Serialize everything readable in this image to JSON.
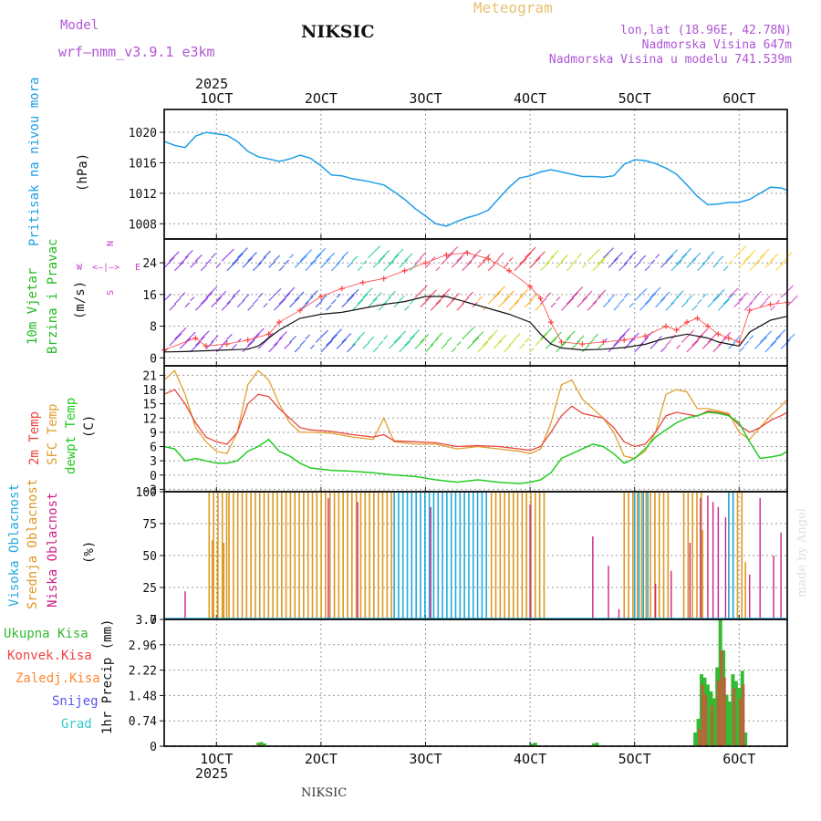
{
  "header": {
    "model_label": "Model",
    "model_name": "wrf—nmm_v3.9.1 e3km",
    "station": "NIKSIC",
    "product": "Meteogram",
    "coords": "lon,lat (18.96E, 42.78N)",
    "altitude": "Nadmorska Visina 647m",
    "model_altitude": "Nadmorska Visina u modelu 741.539m",
    "footer_station": "NIKSIC",
    "credit": "made by Angel"
  },
  "colors": {
    "pressure": "#1e9ee6",
    "temp2m": "#e8463c",
    "sfc": "#e0a030",
    "dewpt": "#22cc22",
    "wind_label": "#22bb22",
    "magenta": "#cc44cc",
    "high_cloud": "#22aadd",
    "mid_cloud": "#dd9922",
    "low_cloud": "#cc2288",
    "total_precip": "#33bb33",
    "conv_precip": "#ee4444",
    "frz_precip": "#ff8833",
    "snow": "#5555ee",
    "hail": "#33cccc"
  },
  "chart_data": [
    {
      "type": "line",
      "id": "pressure",
      "title": "Pritisak na nivou mora",
      "ylabel": "(hPa)",
      "x_unit": "day of October 2025",
      "xlim": [
        5.5,
        65.1
      ],
      "ylim": [
        1006,
        1023
      ],
      "yticks": [
        1008,
        1012,
        1016,
        1020
      ],
      "grid": true,
      "series": [
        {
          "name": "Pritisak na nivou mora",
          "color": "#1e9ee6",
          "x": [
            5.5,
            6.5,
            7.5,
            8.5,
            9.5,
            10.5,
            11.5,
            12.5,
            13.5,
            14.5,
            15.5,
            16.5,
            17.5,
            18.5,
            19.5,
            20.5,
            21.5,
            22.5,
            23.5,
            24.5,
            25.5,
            26.5,
            27.5,
            28.5,
            29.5,
            30.5,
            31.5,
            32.5,
            33.5,
            34.5,
            35.5,
            36.5,
            37.5,
            38.5,
            39.5,
            40.5,
            41.5,
            42.5,
            43.5,
            44.5,
            45.5,
            46.5,
            47.5,
            48.5,
            49.5,
            50.5,
            51.5,
            52.5,
            53.5,
            54.5,
            55.5,
            56.5,
            57.5,
            58.5,
            59.5,
            60.5,
            61.5,
            62.5,
            63.5,
            64.5,
            65.1
          ],
          "values": [
            1018.8,
            1018.3,
            1018.0,
            1019.5,
            1020.0,
            1019.8,
            1019.6,
            1018.8,
            1017.5,
            1016.8,
            1016.5,
            1016.2,
            1016.5,
            1017.0,
            1016.6,
            1015.6,
            1014.4,
            1014.3,
            1013.9,
            1013.7,
            1013.4,
            1013.1,
            1012.2,
            1011.2,
            1010.0,
            1009.0,
            1008.0,
            1007.7,
            1008.3,
            1008.8,
            1009.2,
            1009.8,
            1011.3,
            1012.8,
            1014.0,
            1014.3,
            1014.8,
            1015.1,
            1014.8,
            1014.5,
            1014.2,
            1014.2,
            1014.1,
            1014.3,
            1015.8,
            1016.4,
            1016.3,
            1015.9,
            1015.3,
            1014.5,
            1013.1,
            1011.6,
            1010.5,
            1010.6,
            1010.8,
            1010.8,
            1011.2,
            1012.0,
            1012.8,
            1012.7,
            1012.4
          ]
        }
      ]
    },
    {
      "type": "line",
      "id": "wind",
      "title": "10m Vjetar",
      "subtitle": "Brzina i Pravac",
      "ylabel": "(m/s)",
      "compass": [
        "N",
        "S",
        "W",
        "E"
      ],
      "compass_glyph": "<—|—>",
      "xlim": [
        5.5,
        65.1
      ],
      "ylim": [
        -2,
        30
      ],
      "yticks": [
        0,
        8,
        16,
        24
      ],
      "grid": true,
      "series": [
        {
          "name": "Brzina vjetra",
          "color": "#111111",
          "x": [
            5.5,
            7.5,
            9.5,
            11.5,
            13.5,
            14.5,
            15.5,
            16.5,
            17.5,
            18.5,
            20.5,
            22.5,
            24.5,
            26.5,
            28.5,
            30.5,
            32.5,
            34.5,
            36.5,
            38.5,
            40.5,
            41.5,
            42.5,
            43.5,
            45.5,
            47.5,
            49.5,
            51.5,
            53.5,
            55.5,
            57.5,
            58.5,
            59.5,
            60.5,
            61.5,
            63.5,
            65.1
          ],
          "values": [
            1.5,
            1.6,
            1.8,
            2.0,
            2.2,
            3.0,
            5.0,
            7.0,
            8.5,
            10.0,
            11.0,
            11.5,
            12.5,
            13.5,
            14.2,
            15.5,
            15.5,
            14.0,
            12.5,
            11.0,
            9.0,
            6.0,
            3.5,
            2.5,
            2.0,
            2.2,
            2.6,
            3.4,
            5.0,
            6.0,
            5.0,
            4.0,
            3.5,
            3.0,
            6.5,
            9.5,
            10.5
          ]
        },
        {
          "name": "Udari vjetra",
          "color": "#ff4444",
          "x": [
            5.5,
            8.5,
            9.5,
            11.5,
            13.5,
            15.5,
            16.5,
            18.5,
            20.5,
            22.5,
            24.5,
            26.5,
            28.5,
            30.5,
            32.5,
            34.5,
            36.5,
            38.5,
            40.5,
            41.5,
            42.5,
            43.5,
            45.5,
            47.5,
            49.5,
            51.5,
            53.5,
            54.5,
            55.5,
            56.5,
            57.5,
            58.5,
            59.5,
            60.5,
            61.5,
            63.5,
            65.1
          ],
          "values": [
            2.0,
            5.0,
            3.0,
            3.5,
            4.5,
            6.0,
            9.0,
            12.0,
            15.5,
            17.5,
            19.0,
            20.0,
            22.0,
            24.0,
            26.0,
            26.5,
            25.0,
            22.0,
            18.0,
            15.0,
            9.0,
            4.0,
            3.5,
            4.0,
            4.5,
            5.5,
            8.0,
            7.0,
            9.0,
            10.0,
            8.0,
            6.0,
            5.0,
            4.0,
            12.0,
            13.5,
            14.0
          ]
        }
      ]
    },
    {
      "type": "line",
      "id": "temperature",
      "labels": [
        "2m Temp",
        "SFC Temp",
        "dewpt Temp"
      ],
      "ylabel": "(C)",
      "xlim": [
        5.5,
        65.1
      ],
      "ylim": [
        -3.5,
        23
      ],
      "yticks": [
        -3,
        0,
        3,
        6,
        9,
        12,
        15,
        18,
        21
      ],
      "grid": true,
      "series": [
        {
          "name": "2m Temp",
          "color": "#e8463c",
          "x": [
            5.5,
            6.5,
            7.5,
            8.5,
            9.5,
            10.5,
            11.5,
            12.5,
            13.5,
            14.5,
            15.5,
            16.5,
            17.5,
            18.5,
            19.5,
            21.5,
            23.5,
            25.5,
            26.5,
            27.5,
            29.5,
            31.5,
            33.5,
            35.5,
            37.5,
            39.5,
            40.5,
            41.5,
            42.5,
            43.5,
            44.5,
            45.5,
            46.5,
            47.5,
            48.5,
            49.5,
            50.5,
            51.5,
            52.5,
            53.5,
            54.5,
            55.5,
            56.5,
            57.5,
            58.5,
            59.5,
            60.5,
            61.5,
            62.5,
            63.5,
            64.5,
            65.1
          ],
          "values": [
            17,
            18,
            15,
            11,
            8,
            7,
            6.5,
            9,
            15,
            17,
            16.5,
            14,
            12,
            10,
            9.5,
            9.2,
            8.5,
            8,
            8.5,
            7.2,
            7,
            6.8,
            6,
            6.2,
            6,
            5.5,
            5.2,
            6,
            9,
            12.5,
            14.5,
            13,
            12.5,
            12,
            10,
            7,
            6,
            6.5,
            9,
            12.5,
            13.2,
            12.8,
            12.4,
            13.5,
            13.2,
            12.7,
            10.5,
            9,
            10,
            11.5,
            12.5,
            13.2
          ]
        },
        {
          "name": "SFC Temp",
          "color": "#e0a030",
          "x": [
            5.5,
            6.5,
            7.5,
            8.5,
            9.5,
            10.5,
            11.5,
            12.5,
            13.5,
            14.5,
            15.5,
            16.5,
            17.5,
            18.5,
            19.5,
            21.5,
            23.5,
            25.5,
            26.5,
            27.5,
            29.5,
            31.5,
            33.5,
            35.5,
            37.5,
            39.5,
            40.5,
            41.5,
            42.5,
            43.5,
            44.5,
            45.5,
            46.5,
            47.5,
            48.5,
            49.5,
            50.5,
            51.5,
            52.5,
            53.5,
            54.5,
            55.5,
            56.5,
            57.5,
            58.5,
            59.5,
            60.5,
            61.5,
            62.5,
            63.5,
            64.5,
            65.1
          ],
          "values": [
            20,
            22,
            17,
            10,
            7,
            5,
            4.5,
            9,
            19,
            22,
            20,
            15,
            11,
            9,
            9,
            8.8,
            8,
            7.5,
            12,
            7,
            6.5,
            6.5,
            5.5,
            6,
            5.5,
            5,
            4.5,
            5.5,
            11,
            19,
            20,
            16,
            14,
            12,
            9,
            4,
            3.5,
            5,
            9,
            17,
            18,
            17.5,
            14,
            14,
            13.5,
            13,
            9,
            7.5,
            10,
            12.5,
            14.5,
            16
          ]
        },
        {
          "name": "dewpt Temp",
          "color": "#22cc22",
          "x": [
            5.5,
            6.5,
            7.5,
            8.5,
            9.5,
            10.5,
            11.5,
            12.5,
            13.5,
            14.5,
            15.5,
            16.5,
            17.5,
            18.5,
            19.5,
            21.5,
            23.5,
            25.5,
            27.5,
            29.5,
            31.5,
            33.5,
            35.5,
            37.5,
            39.5,
            40.5,
            41.5,
            42.5,
            43.5,
            44.5,
            45.5,
            46.5,
            47.5,
            48.5,
            49.5,
            50.5,
            51.5,
            52.5,
            53.5,
            54.5,
            55.5,
            56.5,
            57.5,
            58.5,
            59.5,
            60.5,
            61.5,
            62.5,
            63.5,
            64.5,
            65.1
          ],
          "values": [
            6,
            5.5,
            3,
            3.5,
            3,
            2.5,
            2.5,
            3,
            5,
            6,
            7.5,
            5,
            4,
            2.5,
            1.5,
            1.0,
            0.8,
            0.5,
            0,
            -0.3,
            -1.0,
            -1.5,
            -1.0,
            -1.5,
            -1.8,
            -1.5,
            -1.0,
            0.5,
            3.5,
            4.5,
            5.5,
            6.5,
            6.0,
            4.5,
            2.5,
            3.5,
            5.5,
            8.0,
            9.5,
            11.0,
            12.0,
            12.5,
            13.2,
            13.0,
            12.5,
            11.0,
            7.0,
            3.5,
            3.8,
            4.2,
            5.0
          ]
        }
      ]
    },
    {
      "type": "bar",
      "id": "clouds",
      "labels": [
        "Visoka Oblacnost",
        "Srednja Oblacnost",
        "Niska Oblacnost"
      ],
      "ylabel": "(%)",
      "xlim": [
        5.5,
        65.1
      ],
      "ylim": [
        0,
        100
      ],
      "yticks": [
        0,
        25,
        50,
        75,
        100
      ],
      "grid": true,
      "mid_cloud_periods": [
        [
          9.8,
          11.7
        ],
        [
          11.7,
          27.5
        ],
        [
          36.8,
          42.0
        ],
        [
          49.5,
          53.8
        ],
        [
          55.2,
          57.3
        ],
        [
          59.5,
          60.8
        ]
      ],
      "high_cloud_periods": [
        [
          27.5,
          36.6
        ],
        [
          50.5,
          52.0
        ],
        [
          59.5,
          60.2
        ]
      ],
      "mid_extra_bars": [
        {
          "x": 10.1,
          "v": 62
        },
        {
          "x": 10.6,
          "v": 62
        },
        {
          "x": 11.2,
          "v": 60
        },
        {
          "x": 57.0,
          "v": 70
        },
        {
          "x": 61.1,
          "v": 45
        }
      ],
      "low_cloud_bars": [
        {
          "x": 7.5,
          "v": 22
        },
        {
          "x": 21.2,
          "v": 95
        },
        {
          "x": 24.0,
          "v": 92
        },
        {
          "x": 31.0,
          "v": 88
        },
        {
          "x": 40.5,
          "v": 90
        },
        {
          "x": 46.5,
          "v": 65
        },
        {
          "x": 48.0,
          "v": 42
        },
        {
          "x": 49.0,
          "v": 8
        },
        {
          "x": 52.5,
          "v": 28
        },
        {
          "x": 54.0,
          "v": 38
        },
        {
          "x": 55.8,
          "v": 60
        },
        {
          "x": 56.8,
          "v": 95
        },
        {
          "x": 57.5,
          "v": 97
        },
        {
          "x": 58.0,
          "v": 92
        },
        {
          "x": 58.5,
          "v": 88
        },
        {
          "x": 59.2,
          "v": 80
        },
        {
          "x": 61.5,
          "v": 35
        },
        {
          "x": 62.5,
          "v": 95
        },
        {
          "x": 63.8,
          "v": 50
        },
        {
          "x": 64.5,
          "v": 68
        }
      ]
    },
    {
      "type": "bar",
      "id": "precipitation",
      "labels": [
        "Ukupna Kisa",
        "Konvek.Kisa",
        "Zaledj.Kisa",
        "Snijeg",
        "Grad"
      ],
      "ylabel": "1hr Precip (mm)",
      "xlim": [
        5.5,
        65.1
      ],
      "ylim": [
        0,
        3.7
      ],
      "yticks": [
        0,
        0.74,
        1.48,
        2.22,
        2.96,
        3.7
      ],
      "grid": true,
      "total_bars": [
        {
          "x": 14.5,
          "v": 0.1
        },
        {
          "x": 14.8,
          "v": 0.12
        },
        {
          "x": 15.1,
          "v": 0.08
        },
        {
          "x": 40.7,
          "v": 0.08
        },
        {
          "x": 41.0,
          "v": 0.1
        },
        {
          "x": 46.6,
          "v": 0.08
        },
        {
          "x": 46.9,
          "v": 0.1
        },
        {
          "x": 56.3,
          "v": 0.4
        },
        {
          "x": 56.6,
          "v": 0.8
        },
        {
          "x": 56.9,
          "v": 2.1
        },
        {
          "x": 57.2,
          "v": 2.0
        },
        {
          "x": 57.5,
          "v": 1.8
        },
        {
          "x": 57.8,
          "v": 1.6
        },
        {
          "x": 58.1,
          "v": 1.4
        },
        {
          "x": 58.4,
          "v": 2.3
        },
        {
          "x": 58.7,
          "v": 3.7
        },
        {
          "x": 59.0,
          "v": 2.8
        },
        {
          "x": 59.3,
          "v": 1.5
        },
        {
          "x": 59.6,
          "v": 1.3
        },
        {
          "x": 59.9,
          "v": 2.1
        },
        {
          "x": 60.2,
          "v": 1.9
        },
        {
          "x": 60.5,
          "v": 1.7
        },
        {
          "x": 60.8,
          "v": 2.2
        },
        {
          "x": 61.1,
          "v": 0.4
        }
      ],
      "convective_bars": [
        {
          "x": 14.6,
          "v": 0.06
        },
        {
          "x": 56.7,
          "v": 0.5
        },
        {
          "x": 57.0,
          "v": 1.8
        },
        {
          "x": 57.3,
          "v": 1.5
        },
        {
          "x": 57.9,
          "v": 1.2
        },
        {
          "x": 58.5,
          "v": 1.9
        },
        {
          "x": 58.8,
          "v": 2.8
        },
        {
          "x": 59.1,
          "v": 2.0
        },
        {
          "x": 60.0,
          "v": 1.7
        },
        {
          "x": 60.6,
          "v": 1.4
        },
        {
          "x": 60.9,
          "v": 1.8
        }
      ]
    }
  ],
  "time_axis": {
    "top_year": "2025",
    "bottom_year": "2025",
    "ticks": [
      {
        "x": 10.5,
        "label": "1OCT"
      },
      {
        "x": 20.5,
        "label": "2OCT"
      },
      {
        "x": 30.5,
        "label": "3OCT"
      },
      {
        "x": 40.5,
        "label": "4OCT"
      },
      {
        "x": 50.5,
        "label": "5OCT"
      },
      {
        "x": 60.5,
        "label": "6OCT"
      }
    ]
  }
}
